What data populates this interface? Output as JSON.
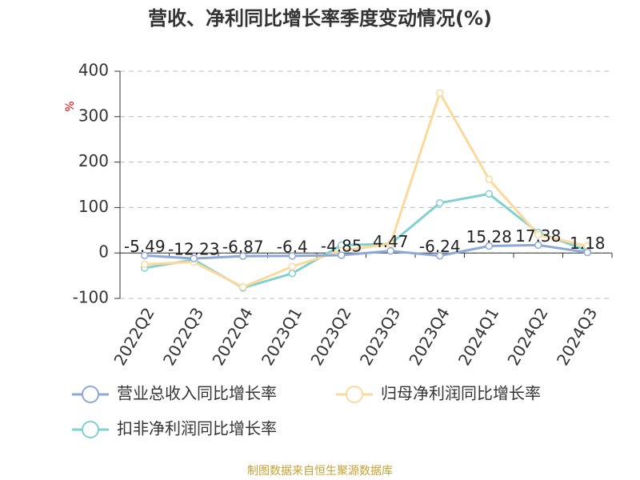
{
  "chart_data": {
    "type": "line",
    "title": "营收、净利同比增长率季度变动情况(%)",
    "y_label": "%",
    "categories": [
      "2022Q2",
      "2022Q3",
      "2022Q4",
      "2023Q1",
      "2023Q2",
      "2023Q3",
      "2023Q4",
      "2024Q1",
      "2024Q2",
      "2024Q3"
    ],
    "series": [
      {
        "name": "营业总收入同比增长率",
        "color": "#8da8d8",
        "values": [
          -5.49,
          -12.23,
          -6.87,
          -6.4,
          -4.85,
          4.47,
          -6.24,
          15.28,
          17.38,
          1.18
        ],
        "show_labels": true
      },
      {
        "name": "归母净利润同比增长率",
        "color": "#fcd99a",
        "values": [
          -25,
          -20,
          -75,
          -30,
          5,
          20,
          352,
          162,
          40,
          15
        ],
        "show_labels": false
      },
      {
        "name": "扣非净利润同比增长率",
        "color": "#80d0d0",
        "values": [
          -33,
          -15,
          -77,
          -45,
          17,
          20,
          110,
          130,
          45,
          5
        ],
        "show_labels": false
      }
    ],
    "ylim": [
      -100,
      400
    ],
    "yticks": [
      -100,
      0,
      100,
      200,
      300,
      400
    ],
    "grid": true,
    "source": "制图数据来自恒生聚源数据库"
  }
}
